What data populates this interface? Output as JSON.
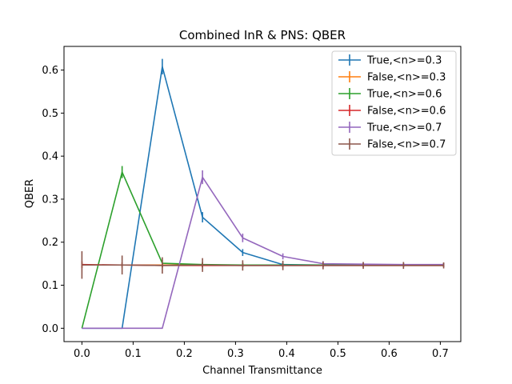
{
  "chart_data": {
    "type": "line",
    "title": "Combined InR & PNS: QBER",
    "xlabel": "Channel Transmittance",
    "ylabel": "QBER",
    "xlim": [
      -0.035,
      0.74
    ],
    "ylim": [
      -0.031,
      0.655
    ],
    "xticks": [
      "0.0",
      "0.1",
      "0.2",
      "0.3",
      "0.4",
      "0.5",
      "0.6",
      "0.7"
    ],
    "yticks": [
      "0.0",
      "0.1",
      "0.2",
      "0.3",
      "0.4",
      "0.5",
      "0.6"
    ],
    "x": [
      0.0,
      0.0785,
      0.157,
      0.2355,
      0.314,
      0.3925,
      0.471,
      0.5495,
      0.628,
      0.7065
    ],
    "legend_position": "upper right",
    "grid": false,
    "series": [
      {
        "name": "True,<n>=0.3",
        "color": "#1f77b4",
        "values": [
          0.0,
          0.0,
          0.608,
          0.258,
          0.176,
          0.148,
          0.147,
          0.147,
          0.147,
          0.147
        ],
        "errors": [
          0.0,
          0.0,
          0.018,
          0.012,
          0.008,
          0.005,
          0.004,
          0.004,
          0.004,
          0.004
        ]
      },
      {
        "name": "False,<n>=0.3",
        "color": "#ff7f0e",
        "values": [
          0.147,
          0.147,
          0.147,
          0.147,
          0.147,
          0.147,
          0.147,
          0.147,
          0.147,
          0.147
        ],
        "errors": [
          0.006,
          0.005,
          0.005,
          0.005,
          0.005,
          0.004,
          0.004,
          0.004,
          0.004,
          0.004
        ]
      },
      {
        "name": "True,<n>=0.6",
        "color": "#2ca02c",
        "values": [
          0.0,
          0.363,
          0.151,
          0.148,
          0.147,
          0.147,
          0.147,
          0.147,
          0.147,
          0.147
        ],
        "errors": [
          0.0,
          0.014,
          0.008,
          0.006,
          0.005,
          0.005,
          0.004,
          0.004,
          0.004,
          0.004
        ]
      },
      {
        "name": "False,<n>=0.6",
        "color": "#d62728",
        "values": [
          0.148,
          0.147,
          0.146,
          0.146,
          0.146,
          0.146,
          0.146,
          0.146,
          0.146,
          0.146
        ],
        "errors": [
          0.008,
          0.006,
          0.005,
          0.005,
          0.004,
          0.004,
          0.004,
          0.004,
          0.004,
          0.004
        ]
      },
      {
        "name": "True,<n>=0.7",
        "color": "#9467bd",
        "values": [
          0.0,
          0.0,
          0.0,
          0.351,
          0.21,
          0.167,
          0.15,
          0.149,
          0.148,
          0.148
        ],
        "errors": [
          0.0,
          0.0,
          0.0,
          0.016,
          0.01,
          0.007,
          0.006,
          0.005,
          0.005,
          0.004
        ]
      },
      {
        "name": "False,<n>=0.7",
        "color": "#8c564b",
        "values": [
          0.147,
          0.147,
          0.146,
          0.147,
          0.146,
          0.146,
          0.146,
          0.146,
          0.146,
          0.146
        ],
        "errors": [
          0.032,
          0.022,
          0.019,
          0.016,
          0.012,
          0.011,
          0.009,
          0.008,
          0.008,
          0.007
        ]
      }
    ]
  }
}
